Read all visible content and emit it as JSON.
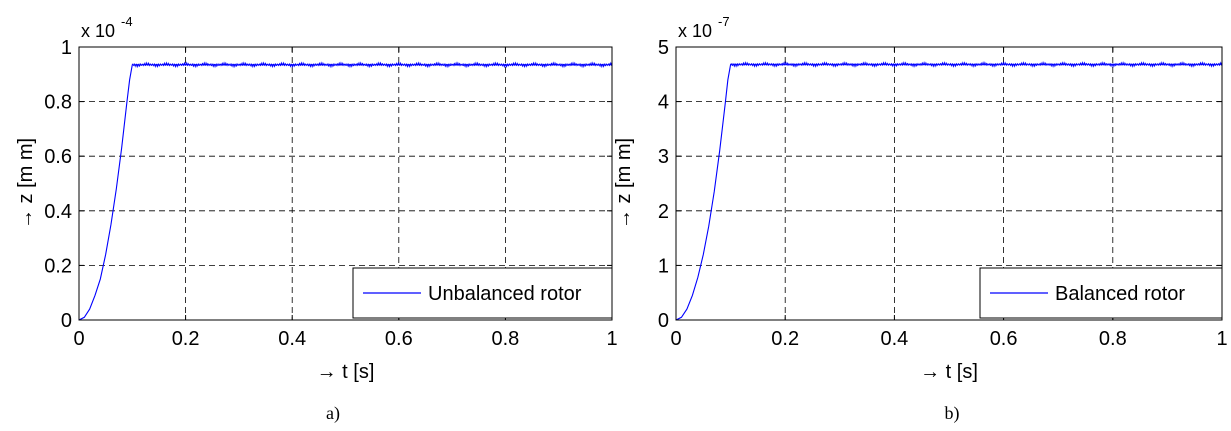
{
  "chart_data": [
    {
      "type": "line",
      "panel_label": "a)",
      "xlabel": "→ t [s]",
      "ylabel": "→ z [m m]",
      "y_exponent_label": "x 10",
      "y_exponent_power": "-4",
      "xlim": [
        0,
        1
      ],
      "ylim": [
        0,
        1
      ],
      "x_ticks": [
        0,
        0.2,
        0.4,
        0.6,
        0.8,
        1
      ],
      "x_tick_labels": [
        "0",
        "0.2",
        "0.4",
        "0.6",
        "0.8",
        "1"
      ],
      "y_ticks": [
        0,
        0.2,
        0.4,
        0.6,
        0.8,
        1
      ],
      "y_tick_labels": [
        "0",
        "0.2",
        "0.4",
        "0.6",
        "0.8",
        "1"
      ],
      "grid": true,
      "legend_position": "bottom-right",
      "series": [
        {
          "name": "Unbalanced rotor",
          "color": "#0000ff",
          "x": [
            0,
            0.01,
            0.02,
            0.03,
            0.04,
            0.05,
            0.06,
            0.07,
            0.08,
            0.09,
            0.095,
            0.1,
            0.2,
            0.3,
            0.4,
            0.5,
            0.6,
            0.7,
            0.8,
            0.9,
            1.0
          ],
          "y": [
            0,
            0.01,
            0.04,
            0.09,
            0.15,
            0.24,
            0.35,
            0.48,
            0.63,
            0.8,
            0.88,
            0.935,
            0.935,
            0.935,
            0.935,
            0.935,
            0.935,
            0.935,
            0.935,
            0.935,
            0.935
          ],
          "oscillation_amplitude": 0.006
        }
      ]
    },
    {
      "type": "line",
      "panel_label": "b)",
      "xlabel": "→ t [s]",
      "ylabel": "→ z [m m]",
      "y_exponent_label": "x 10",
      "y_exponent_power": "-7",
      "xlim": [
        0,
        1
      ],
      "ylim": [
        0,
        5
      ],
      "x_ticks": [
        0,
        0.2,
        0.4,
        0.6,
        0.8,
        1
      ],
      "x_tick_labels": [
        "0",
        "0.2",
        "0.4",
        "0.6",
        "0.8",
        "1"
      ],
      "y_ticks": [
        0,
        1,
        2,
        3,
        4,
        5
      ],
      "y_tick_labels": [
        "0",
        "1",
        "2",
        "3",
        "4",
        "5"
      ],
      "grid": true,
      "legend_position": "bottom-right",
      "series": [
        {
          "name": "Balanced rotor",
          "color": "#0000ff",
          "x": [
            0,
            0.01,
            0.02,
            0.03,
            0.04,
            0.05,
            0.06,
            0.07,
            0.08,
            0.09,
            0.095,
            0.1,
            0.2,
            0.3,
            0.4,
            0.5,
            0.6,
            0.7,
            0.8,
            0.9,
            1.0
          ],
          "y": [
            0,
            0.05,
            0.2,
            0.45,
            0.78,
            1.2,
            1.72,
            2.35,
            3.1,
            3.95,
            4.4,
            4.68,
            4.68,
            4.68,
            4.68,
            4.68,
            4.68,
            4.68,
            4.68,
            4.68,
            4.68
          ],
          "oscillation_amplitude": 0.03
        }
      ]
    }
  ]
}
